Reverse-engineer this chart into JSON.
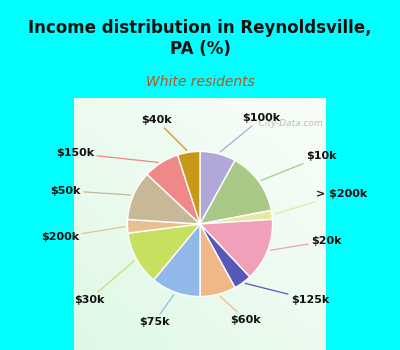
{
  "title": "Income distribution in Reynoldsville,\nPA (%)",
  "subtitle": "White residents",
  "bg_cyan": "#00FFFF",
  "labels": [
    "$100k",
    "$10k",
    "> $200k",
    "$20k",
    "$125k",
    "$60k",
    "$75k",
    "$30k",
    "$200k",
    "$50k",
    "$150k",
    "$40k"
  ],
  "values": [
    8,
    14,
    2,
    14,
    4,
    8,
    11,
    12,
    3,
    11,
    8,
    5
  ],
  "colors": [
    "#b0a8d8",
    "#a8c888",
    "#e8e8a0",
    "#f0a0b8",
    "#5858b8",
    "#f0b888",
    "#90b8e8",
    "#c8e060",
    "#e8c090",
    "#c8b898",
    "#f08888",
    "#c89818"
  ],
  "watermark": "  City-Data.com",
  "startangle": 90,
  "title_fontsize": 12,
  "subtitle_fontsize": 10,
  "label_fontsize": 8
}
